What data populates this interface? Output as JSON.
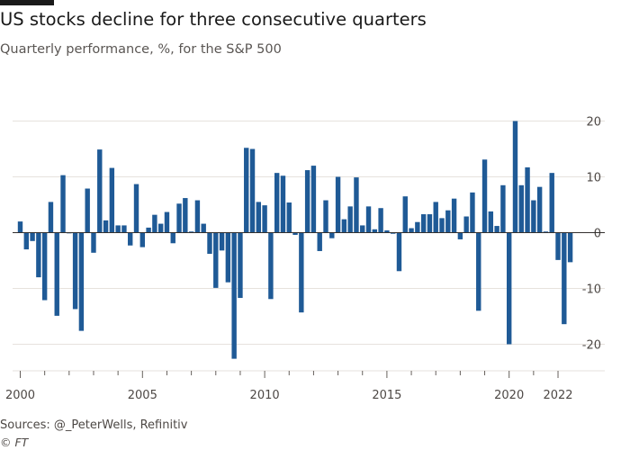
{
  "header": {
    "title": "US stocks decline for three consecutive quarters",
    "subtitle": "Quarterly performance, %, for the S&P 500"
  },
  "footer": {
    "source": "Sources: @_PeterWells, Refinitiv",
    "logo_text": "© FT"
  },
  "colors": {
    "bar": "#1f5a96",
    "grid": "#e6e2dd",
    "zero_line": "#33302e",
    "tick_text": "#4d4845"
  },
  "chart_data": {
    "type": "bar",
    "title": "US stocks decline for three consecutive quarters",
    "subtitle": "Quarterly performance, %, for the S&P 500",
    "xlabel": "",
    "ylabel": "",
    "ylim": [
      -25,
      22
    ],
    "yticks": [
      20,
      10,
      0,
      -10,
      -20
    ],
    "ytick_labels": [
      "20",
      "10",
      "0",
      "-10",
      "-20"
    ],
    "xticks": [
      "2000",
      "2005",
      "2010",
      "2015",
      "2020",
      "2022"
    ],
    "grid": true,
    "y_axis_position": "right",
    "categories": [
      "2000 Q1",
      "2000 Q2",
      "2000 Q3",
      "2000 Q4",
      "2001 Q1",
      "2001 Q2",
      "2001 Q3",
      "2001 Q4",
      "2002 Q1",
      "2002 Q2",
      "2002 Q3",
      "2002 Q4",
      "2003 Q1",
      "2003 Q2",
      "2003 Q3",
      "2003 Q4",
      "2004 Q1",
      "2004 Q2",
      "2004 Q3",
      "2004 Q4",
      "2005 Q1",
      "2005 Q2",
      "2005 Q3",
      "2005 Q4",
      "2006 Q1",
      "2006 Q2",
      "2006 Q3",
      "2006 Q4",
      "2007 Q1",
      "2007 Q2",
      "2007 Q3",
      "2007 Q4",
      "2008 Q1",
      "2008 Q2",
      "2008 Q3",
      "2008 Q4",
      "2009 Q1",
      "2009 Q2",
      "2009 Q3",
      "2009 Q4",
      "2010 Q1",
      "2010 Q2",
      "2010 Q3",
      "2010 Q4",
      "2011 Q1",
      "2011 Q2",
      "2011 Q3",
      "2011 Q4",
      "2012 Q1",
      "2012 Q2",
      "2012 Q3",
      "2012 Q4",
      "2013 Q1",
      "2013 Q2",
      "2013 Q3",
      "2013 Q4",
      "2014 Q1",
      "2014 Q2",
      "2014 Q3",
      "2014 Q4",
      "2015 Q1",
      "2015 Q2",
      "2015 Q3",
      "2015 Q4",
      "2016 Q1",
      "2016 Q2",
      "2016 Q3",
      "2016 Q4",
      "2017 Q1",
      "2017 Q2",
      "2017 Q3",
      "2017 Q4",
      "2018 Q1",
      "2018 Q2",
      "2018 Q3",
      "2018 Q4",
      "2019 Q1",
      "2019 Q2",
      "2019 Q3",
      "2019 Q4",
      "2020 Q1",
      "2020 Q2",
      "2020 Q3",
      "2020 Q4",
      "2021 Q1",
      "2021 Q2",
      "2021 Q3",
      "2021 Q4",
      "2022 Q1",
      "2022 Q2",
      "2022 Q3"
    ],
    "values": [
      2.0,
      -3.0,
      -1.5,
      -8.0,
      -12.1,
      5.5,
      -14.9,
      10.3,
      0.0,
      -13.7,
      -17.6,
      7.9,
      -3.6,
      14.9,
      2.2,
      11.6,
      1.3,
      1.3,
      -2.3,
      8.7,
      -2.6,
      0.9,
      3.2,
      1.6,
      3.7,
      -1.9,
      5.2,
      6.2,
      0.2,
      5.8,
      1.6,
      -3.8,
      -9.9,
      -3.2,
      -8.9,
      -22.6,
      -11.7,
      15.2,
      15.0,
      5.5,
      4.9,
      -11.9,
      10.7,
      10.2,
      5.4,
      -0.4,
      -14.3,
      11.2,
      12.0,
      -3.3,
      5.8,
      -1.0,
      10.0,
      2.4,
      4.7,
      9.9,
      1.3,
      4.7,
      0.6,
      4.4,
      0.4,
      -0.2,
      -6.9,
      6.5,
      0.8,
      1.9,
      3.3,
      3.3,
      5.5,
      2.6,
      4.0,
      6.1,
      -1.2,
      2.9,
      7.2,
      -14.0,
      13.1,
      3.8,
      1.2,
      8.5,
      -20.0,
      20.0,
      8.5,
      11.7,
      5.8,
      8.2,
      0.2,
      10.7,
      -4.9,
      -16.4,
      -5.3
    ]
  }
}
